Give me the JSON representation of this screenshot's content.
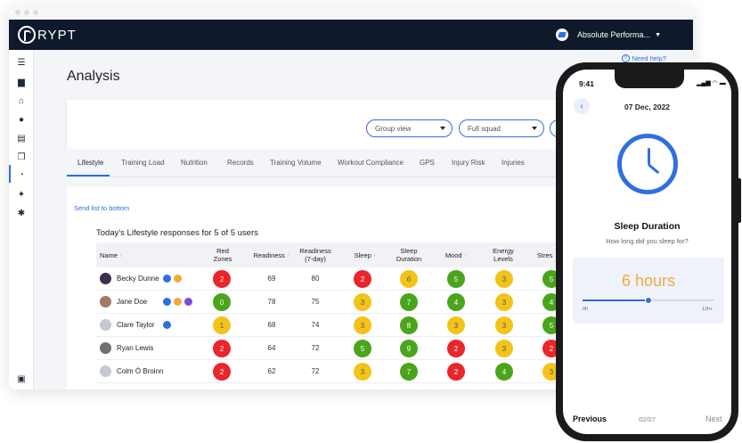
{
  "app": {
    "logo_text": "RYPT",
    "org_name": "Absolute Performa...",
    "need_help": "Need help?"
  },
  "page": {
    "title": "Analysis"
  },
  "filters": {
    "group_view": "Group view",
    "squad": "Full squad"
  },
  "tabs": [
    "Lifestyle",
    "Training Load",
    "Nutrition",
    "Records",
    "Training Volume",
    "Workout Compliance",
    "GPS",
    "Injury Risk",
    "Injuries"
  ],
  "panel": {
    "send_list": "Send list to bottom",
    "responses_title": "Today's Lifestyle responses for 5 of 5 users",
    "columns": [
      "Name",
      "Red\nZones",
      "Readiness",
      "Readiness\n(7-day)",
      "Sleep",
      "Sleep\nDuration",
      "Mood",
      "Energy\nLevels",
      "Stres"
    ],
    "rows": [
      {
        "name": "Becky Dunne",
        "red": "2",
        "readiness": "69",
        "readiness7": "80",
        "sleep": "2",
        "duration": "6",
        "mood": "5",
        "energy": "3",
        "stress": "5"
      },
      {
        "name": "Jane Doe",
        "red": "0",
        "readiness": "78",
        "readiness7": "75",
        "sleep": "3",
        "duration": "7",
        "mood": "4",
        "energy": "3",
        "stress": "4"
      },
      {
        "name": "Clare Taylor",
        "red": "1",
        "readiness": "68",
        "readiness7": "74",
        "sleep": "3",
        "duration": "8",
        "mood": "3",
        "energy": "3",
        "stress": "5"
      },
      {
        "name": "Ryan Lewis",
        "red": "2",
        "readiness": "64",
        "readiness7": "72",
        "sleep": "5",
        "duration": "9",
        "mood": "2",
        "energy": "3",
        "stress": "2"
      },
      {
        "name": "Colm Ó Broinn",
        "red": "2",
        "readiness": "62",
        "readiness7": "72",
        "sleep": "3",
        "duration": "7",
        "mood": "2",
        "energy": "4",
        "stress": "3"
      }
    ]
  },
  "phone": {
    "time": "9:41",
    "date": "07 Dec, 2022",
    "question_title": "Sleep Duration",
    "question_sub": "How long did you sleep for?",
    "answer": "6 hours",
    "slider_value_fraction": 0.5,
    "slider_min": "0h",
    "slider_max": "12h+",
    "prev": "Previous",
    "page": "02/07",
    "next": "Next"
  },
  "colors": {
    "accent": "#2f6fe0",
    "red": "#e8262b",
    "green": "#4aa51b",
    "yellow": "#f3c31a",
    "topbar": "#0e1a2b"
  }
}
